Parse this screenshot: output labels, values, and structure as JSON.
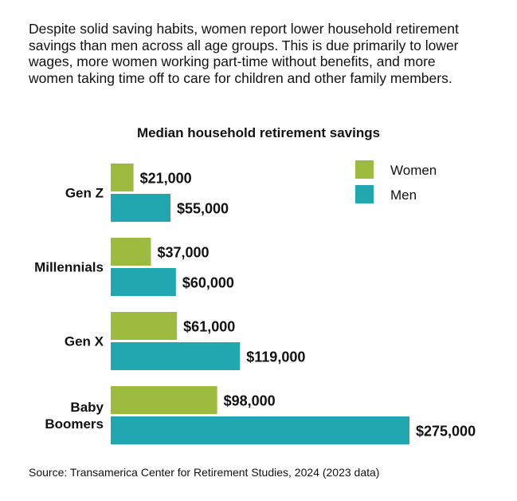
{
  "intro_text": "Despite solid saving habits, women report lower household retirement savings than men across all age groups. This is due primarily to lower wages, more women working part-time without benefits, and more women taking time off to care for children and other family members.",
  "source": "Source: Transamerica Center for Retirement Studies, 2024 (2023 data)",
  "colors": {
    "women": "#9dbb3f",
    "men": "#21a7b0",
    "text": "#111111"
  },
  "chart_data": {
    "type": "bar",
    "orientation": "horizontal",
    "title": "Median household retirement savings",
    "categories": [
      [
        "Gen Z"
      ],
      [
        "Millennials"
      ],
      [
        "Gen X"
      ],
      [
        "Baby",
        "Boomers"
      ]
    ],
    "series": [
      {
        "name": "Women",
        "values": [
          21000,
          37000,
          61000,
          98000
        ],
        "labels": [
          "$21,000",
          "$37,000",
          "$61,000",
          "$98,000"
        ]
      },
      {
        "name": "Men",
        "values": [
          55000,
          60000,
          119000,
          275000
        ],
        "labels": [
          "$55,000",
          "$60,000",
          "$119,000",
          "$275,000"
        ]
      }
    ],
    "legend": "top-right",
    "grid": false,
    "xlim": [
      0,
      275000
    ]
  }
}
